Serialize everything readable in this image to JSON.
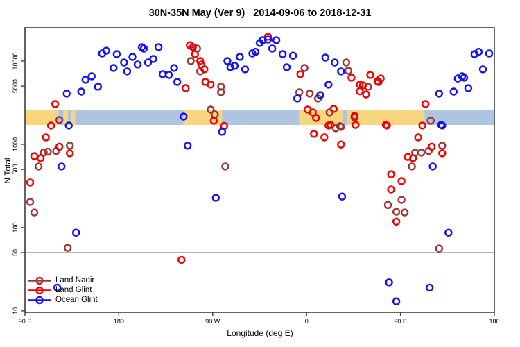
{
  "title": "30N-35N May (Ver 9)   2014-09-06 to 2018-12-31",
  "chart_data": {
    "type": "scatter",
    "title": "30N-35N May (Ver 9)   2014-09-06 to 2018-12-31",
    "xlabel": "Longitude (deg E)",
    "ylabel": "N Total",
    "x_axis": {
      "unit": "degrees of longitude along axis, 0 = 90E at left edge, axis wraps eastward through 180, 90W, 0, 90E to 180 (450 deg total)",
      "range": [
        0,
        450
      ],
      "ticks": [
        {
          "t": 0,
          "label": "90 E"
        },
        {
          "t": 90,
          "label": "180"
        },
        {
          "t": 180,
          "label": "90 W"
        },
        {
          "t": 270,
          "label": "0"
        },
        {
          "t": 360,
          "label": "90 E"
        },
        {
          "t": 450,
          "label": "180"
        }
      ]
    },
    "y_axis": {
      "scale": "log10",
      "range": [
        9.6,
        25100
      ],
      "ticks": [
        {
          "value": 10,
          "label": "10"
        },
        {
          "value": 50,
          "label": "50"
        },
        {
          "value": 100,
          "label": "100"
        },
        {
          "value": 500,
          "label": "500"
        },
        {
          "value": 1000,
          "label": "1000"
        },
        {
          "value": 5000,
          "label": "5000"
        },
        {
          "value": 10000,
          "label": "10000"
        }
      ],
      "grid": false
    },
    "reference_line": {
      "value": 50,
      "color": "#9c9c9c"
    },
    "land_ocean_band": {
      "description": "horizontal strip marking land (orange) vs ocean (blue) surface along longitude",
      "top_value": 2560,
      "bottom_value": 1710,
      "land_color": "#f9d57d",
      "ocean_color": "#aec5e2",
      "segments": [
        {
          "from": 0,
          "to": 32,
          "surface": "land"
        },
        {
          "from": 32,
          "to": 37,
          "surface": "ocean"
        },
        {
          "from": 37,
          "to": 41,
          "surface": "land"
        },
        {
          "from": 41,
          "to": 44,
          "surface": "ocean"
        },
        {
          "from": 44,
          "to": 48,
          "surface": "land"
        },
        {
          "from": 48,
          "to": 152,
          "surface": "ocean"
        },
        {
          "from": 152,
          "to": 189,
          "surface": "land"
        },
        {
          "from": 189,
          "to": 263,
          "surface": "ocean"
        },
        {
          "from": 263,
          "to": 305,
          "surface": "land"
        },
        {
          "from": 305,
          "to": 309,
          "surface": "ocean"
        },
        {
          "from": 309,
          "to": 383,
          "surface": "land"
        },
        {
          "from": 383,
          "to": 450,
          "surface": "ocean"
        }
      ]
    },
    "legend": {
      "position": "bottom-left"
    },
    "series": [
      {
        "name": "Land Nadir",
        "color": "#a03434",
        "marker": "open-circle",
        "points": [
          [
            33,
            1960
          ],
          [
            165,
            14100
          ],
          [
            159,
            10000
          ],
          [
            168,
            7500
          ],
          [
            178,
            2610
          ],
          [
            182,
            2280
          ],
          [
            188,
            4920
          ],
          [
            188,
            4220
          ],
          [
            268,
            8260
          ],
          [
            308,
            9620
          ],
          [
            310,
            7640
          ],
          [
            263,
            4220
          ],
          [
            273,
            4060
          ],
          [
            281,
            3550
          ],
          [
            292,
            2420
          ],
          [
            316,
            2100
          ],
          [
            302,
            1650
          ],
          [
            298,
            1560
          ],
          [
            303,
            1615
          ],
          [
            389,
            1920
          ],
          [
            43,
            962
          ],
          [
            18,
            800
          ],
          [
            22,
            815
          ],
          [
            30,
            830
          ],
          [
            13,
            541
          ],
          [
            5,
            203
          ],
          [
            9,
            152
          ],
          [
            192,
            541
          ],
          [
            374,
            795
          ],
          [
            380,
            795
          ],
          [
            387,
            830
          ],
          [
            400,
            962
          ],
          [
            371,
            541
          ],
          [
            348,
            187
          ],
          [
            361,
            215
          ],
          [
            356,
            155
          ],
          [
            364,
            152
          ],
          [
            41,
            57
          ],
          [
            397,
            56
          ],
          [
            329,
            4920
          ]
        ]
      },
      {
        "name": "Land Glint",
        "color": "#ee0000",
        "marker": "open-circle",
        "points": [
          [
            29,
            3040
          ],
          [
            25,
            1680
          ],
          [
            158,
            15500
          ],
          [
            161,
            14700
          ],
          [
            163,
            12100
          ],
          [
            168,
            10000
          ],
          [
            169,
            9100
          ],
          [
            172,
            7950
          ],
          [
            173,
            5620
          ],
          [
            178,
            5210
          ],
          [
            154,
            4730
          ],
          [
            191,
            1660
          ],
          [
            233,
            19600
          ],
          [
            264,
            6950
          ],
          [
            313,
            6310
          ],
          [
            321,
            5210
          ],
          [
            324,
            5110
          ],
          [
            331,
            6810
          ],
          [
            321,
            4330
          ],
          [
            327,
            3980
          ],
          [
            338,
            5730
          ],
          [
            341,
            6170
          ],
          [
            339,
            5620
          ],
          [
            271,
            2610
          ],
          [
            276,
            2420
          ],
          [
            279,
            2070
          ],
          [
            296,
            2660
          ],
          [
            316,
            2190
          ],
          [
            293,
            1710
          ],
          [
            181,
            1920
          ],
          [
            384,
            3040
          ],
          [
            381,
            1680
          ],
          [
            346,
            1710
          ],
          [
            20,
            1210
          ],
          [
            33,
            937
          ],
          [
            9,
            721
          ],
          [
            15,
            681
          ],
          [
            43,
            780
          ],
          [
            5,
            348
          ],
          [
            291,
            1680
          ],
          [
            317,
            1710
          ],
          [
            277,
            1335
          ],
          [
            287,
            1210
          ],
          [
            303,
            995
          ],
          [
            347,
            1680
          ],
          [
            377,
            1210
          ],
          [
            390,
            937
          ],
          [
            400,
            780
          ],
          [
            367,
            705
          ],
          [
            372,
            681
          ],
          [
            351,
            437
          ],
          [
            361,
            361
          ],
          [
            351,
            287
          ],
          [
            356,
            118
          ],
          [
            150,
            41
          ]
        ]
      },
      {
        "name": "Ocean Glint",
        "color": "#1212ee",
        "marker": "open-circle",
        "points": [
          [
            74,
            12350
          ],
          [
            78,
            13300
          ],
          [
            88,
            12100
          ],
          [
            95,
            9620
          ],
          [
            85,
            8260
          ],
          [
            103,
            11200
          ],
          [
            112,
            14700
          ],
          [
            108,
            9100
          ],
          [
            98,
            7500
          ],
          [
            58,
            5960
          ],
          [
            64,
            6550
          ],
          [
            54,
            4290
          ],
          [
            40,
            4060
          ],
          [
            70,
            4920
          ],
          [
            42,
            1680
          ],
          [
            114,
            14100
          ],
          [
            128,
            14700
          ],
          [
            118,
            9620
          ],
          [
            123,
            10600
          ],
          [
            132,
            6950
          ],
          [
            138,
            6810
          ],
          [
            143,
            8260
          ],
          [
            146,
            5620
          ],
          [
            194,
            10000
          ],
          [
            197,
            8420
          ],
          [
            201,
            8770
          ],
          [
            206,
            11200
          ],
          [
            211,
            7950
          ],
          [
            218,
            12350
          ],
          [
            221,
            12900
          ],
          [
            225,
            16500
          ],
          [
            228,
            17800
          ],
          [
            233,
            18100
          ],
          [
            241,
            17800
          ],
          [
            237,
            14100
          ],
          [
            247,
            12100
          ],
          [
            257,
            11600
          ],
          [
            251,
            8420
          ],
          [
            288,
            11000
          ],
          [
            297,
            9620
          ],
          [
            303,
            7500
          ],
          [
            291,
            5210
          ],
          [
            283,
            3890
          ],
          [
            261,
            3550
          ],
          [
            152,
            2150
          ],
          [
            431,
            12100
          ],
          [
            435,
            12900
          ],
          [
            445,
            12350
          ],
          [
            439,
            7950
          ],
          [
            415,
            6170
          ],
          [
            419,
            6550
          ],
          [
            421,
            6310
          ],
          [
            425,
            4730
          ],
          [
            411,
            4290
          ],
          [
            397,
            4060
          ],
          [
            399,
            1710
          ],
          [
            189,
            1413
          ],
          [
            156,
            962
          ],
          [
            183,
            228
          ],
          [
            304,
            236
          ],
          [
            391,
            541
          ],
          [
            400,
            1680
          ],
          [
            35,
            541
          ],
          [
            49,
            87
          ],
          [
            406,
            87
          ],
          [
            31,
            19
          ],
          [
            349,
            22
          ],
          [
            388,
            19
          ],
          [
            356,
            13
          ]
        ]
      }
    ],
    "axis_color": "#3d3d3d",
    "point_radius": 4.5,
    "point_stroke_width": 2.4
  }
}
